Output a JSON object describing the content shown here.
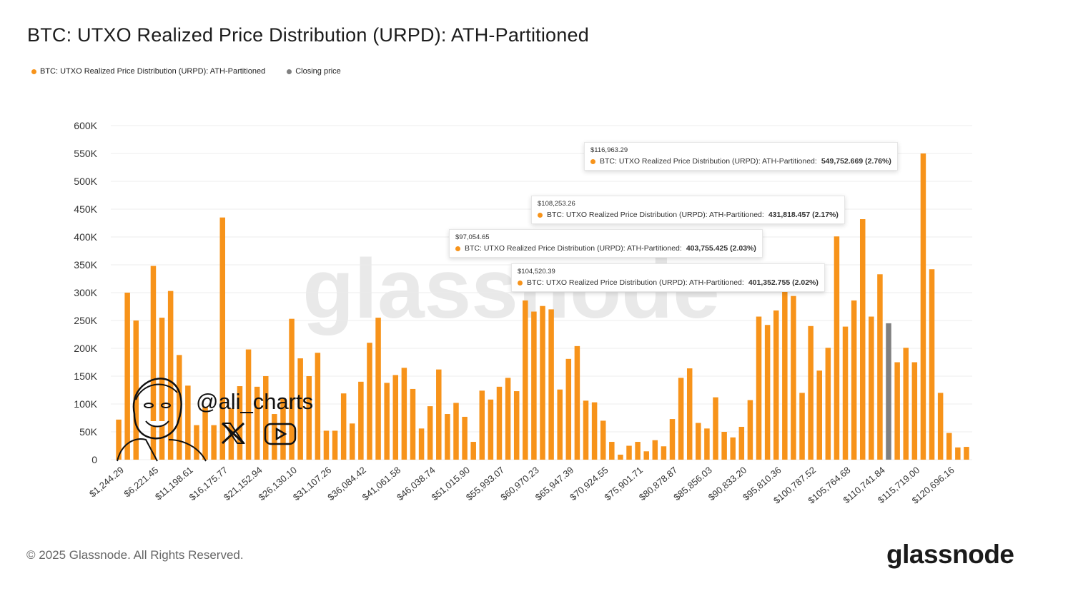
{
  "title": "BTC: UTXO Realized Price Distribution (URPD): ATH-Partitioned",
  "legend": [
    {
      "label": "BTC: UTXO Realized Price Distribution (URPD): ATH-Partitioned",
      "color": "#f7931a"
    },
    {
      "label": "Closing price",
      "color": "#808080"
    }
  ],
  "footer": "© 2025 Glassnode. All Rights Reserved.",
  "brand": "glassnode",
  "watermark": "glassnode",
  "overlay": {
    "handle": "@ali_charts",
    "icons": [
      "avatar-caricature",
      "x-logo-icon",
      "youtube-icon"
    ]
  },
  "tooltips": [
    {
      "price": "$116,963.29",
      "series": "BTC: UTXO Realized Price Distribution (URPD): ATH-Partitioned:",
      "value": "549,752.669 (2.76%)"
    },
    {
      "price": "$108,253.26",
      "series": "BTC: UTXO Realized Price Distribution (URPD): ATH-Partitioned:",
      "value": "431,818.457 (2.17%)"
    },
    {
      "price": "$97,054.65",
      "series": "BTC: UTXO Realized Price Distribution (URPD): ATH-Partitioned:",
      "value": "403,755.425 (2.03%)"
    },
    {
      "price": "$104,520.39",
      "series": "BTC: UTXO Realized Price Distribution (URPD): ATH-Partitioned:",
      "value": "401,352.755 (2.02%)"
    }
  ],
  "chart_data": {
    "type": "bar",
    "title": "BTC: UTXO Realized Price Distribution (URPD): ATH-Partitioned",
    "ylim": [
      0,
      600000
    ],
    "yticks": [
      "0",
      "50K",
      "100K",
      "150K",
      "200K",
      "250K",
      "300K",
      "350K",
      "400K",
      "450K",
      "500K",
      "550K",
      "600K"
    ],
    "xtick_labels": [
      "$1,244.29",
      "$6,221.45",
      "$11,198.61",
      "$16,175.77",
      "$21,152.94",
      "$26,130.10",
      "$31,107.26",
      "$36,084.42",
      "$41,061.58",
      "$46,038.74",
      "$51,015.90",
      "$55,993.07",
      "$60,970.23",
      "$65,947.39",
      "$70,924.55",
      "$75,901.71",
      "$80,878.87",
      "$85,856.03",
      "$90,833.20",
      "$95,810.36",
      "$100,787.52",
      "$105,764.68",
      "$110,741.84",
      "$115,719.00",
      "$120,696.16"
    ],
    "grid": true,
    "legend_position": "top-left",
    "series": [
      {
        "name": "BTC: UTXO Realized Price Distribution (URPD): ATH-Partitioned",
        "color": "#f7931a",
        "values": [
          72000,
          300000,
          250000,
          0,
          348000,
          255000,
          303000,
          188000,
          133000,
          62000,
          95000,
          62000,
          435000,
          92000,
          132000,
          198000,
          131000,
          150000,
          82000,
          110000,
          253000,
          182000,
          150000,
          192000,
          52000,
          52000,
          119000,
          65000,
          140000,
          210000,
          255000,
          138000,
          152000,
          165000,
          127000,
          56000,
          96000,
          162000,
          82000,
          102000,
          77000,
          32000,
          124000,
          108000,
          131000,
          147000,
          123000,
          286000,
          266000,
          276000,
          270000,
          126000,
          181000,
          204000,
          106000,
          103000,
          70000,
          32000,
          9000,
          25000,
          32000,
          15000,
          35000,
          24000,
          73000,
          147000,
          164000,
          66000,
          56000,
          112000,
          50000,
          40000,
          59000,
          107000,
          257000,
          242000,
          268000,
          350000,
          294000,
          120000,
          240000,
          160000,
          201000,
          401000,
          239000,
          286000,
          432000,
          257000,
          333000,
          0,
          175000,
          201000,
          175000,
          550000,
          342000,
          120000,
          48000,
          22000,
          23000
        ]
      },
      {
        "name": "Closing price",
        "color": "#808080",
        "values": [
          0,
          0,
          0,
          0,
          0,
          0,
          0,
          0,
          0,
          0,
          0,
          0,
          0,
          0,
          0,
          0,
          0,
          0,
          0,
          0,
          0,
          0,
          0,
          0,
          0,
          0,
          0,
          0,
          0,
          0,
          0,
          0,
          0,
          0,
          0,
          0,
          0,
          0,
          0,
          0,
          0,
          0,
          0,
          0,
          0,
          0,
          0,
          0,
          0,
          0,
          0,
          0,
          0,
          0,
          0,
          0,
          0,
          0,
          0,
          0,
          0,
          0,
          0,
          0,
          0,
          0,
          0,
          0,
          0,
          0,
          0,
          0,
          0,
          0,
          0,
          0,
          0,
          0,
          0,
          0,
          0,
          0,
          0,
          0,
          0,
          0,
          0,
          0,
          0,
          245000,
          0,
          0,
          0,
          0,
          0,
          0,
          0,
          0,
          0
        ]
      }
    ]
  }
}
